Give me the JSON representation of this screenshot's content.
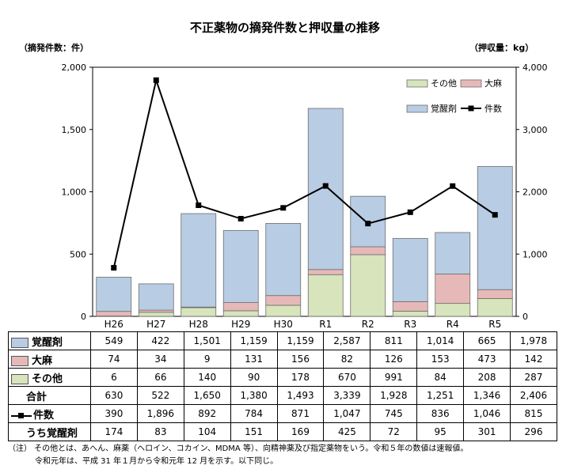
{
  "title": "不正薬物の摘発件数と押収量の推移",
  "unit_left": "（摘発件数：件）",
  "unit_right": "（押収量：kg）",
  "colors": {
    "stimulant": "#b8cce4",
    "cannabis": "#e6b9b8",
    "other": "#d7e4bc",
    "line": "#000000",
    "bar_edge": "#6d6d6d"
  },
  "chart_data": {
    "type": "bar",
    "categories": [
      "H26",
      "H27",
      "H28",
      "H29",
      "H30",
      "R1",
      "R2",
      "R3",
      "R4",
      "R5"
    ],
    "stack_order": [
      "other",
      "cannabis",
      "stimulant"
    ],
    "series": [
      {
        "key": "stimulant",
        "name": "覚醒剤",
        "axis": "right",
        "values": [
          549,
          422,
          1501,
          1159,
          1159,
          2587,
          811,
          1014,
          665,
          1978
        ]
      },
      {
        "key": "cannabis",
        "name": "大麻",
        "axis": "right",
        "values": [
          74,
          34,
          9,
          131,
          156,
          82,
          126,
          153,
          473,
          142
        ]
      },
      {
        "key": "other",
        "name": "その他",
        "axis": "right",
        "values": [
          6,
          66,
          140,
          90,
          178,
          670,
          991,
          84,
          208,
          287
        ]
      },
      {
        "key": "cases",
        "name": "件数",
        "axis": "left",
        "type": "line",
        "values": [
          390,
          1896,
          892,
          784,
          871,
          1047,
          745,
          836,
          1046,
          815
        ]
      }
    ],
    "y_left": {
      "min": 0,
      "max": 2000,
      "ticks": [
        "0",
        "500",
        "1,000",
        "1,500",
        "2,000"
      ],
      "tick_values": [
        0,
        500,
        1000,
        1500,
        2000
      ]
    },
    "y_right": {
      "min": 0,
      "max": 4000,
      "ticks": [
        "0",
        "1,000",
        "2,000",
        "3,000",
        "4,000"
      ],
      "tick_values": [
        0,
        1000,
        2000,
        3000,
        4000
      ]
    },
    "grid": false,
    "legend_placement": "top-right"
  },
  "table": {
    "rows": [
      {
        "label": "覚醒剤",
        "key": "stimulant",
        "cells": [
          "549",
          "422",
          "1,501",
          "1,159",
          "1,159",
          "2,587",
          "811",
          "1,014",
          "665",
          "1,978"
        ]
      },
      {
        "label": "大麻",
        "key": "cannabis",
        "cells": [
          "74",
          "34",
          "9",
          "131",
          "156",
          "82",
          "126",
          "153",
          "473",
          "142"
        ]
      },
      {
        "label": "その他",
        "key": "other",
        "cells": [
          "6",
          "66",
          "140",
          "90",
          "178",
          "670",
          "991",
          "84",
          "208",
          "287"
        ]
      },
      {
        "label": "合計",
        "key": "total",
        "cells": [
          "630",
          "522",
          "1,650",
          "1,380",
          "1,493",
          "3,339",
          "1,928",
          "1,251",
          "1,346",
          "2,406"
        ]
      },
      {
        "label": "件数",
        "key": "cases",
        "cells": [
          "390",
          "1,896",
          "892",
          "784",
          "871",
          "1,047",
          "745",
          "836",
          "1,046",
          "815"
        ]
      },
      {
        "label": "うち覚醒剤",
        "key": "cases_stimulant",
        "cells": [
          "174",
          "83",
          "104",
          "151",
          "169",
          "425",
          "72",
          "95",
          "301",
          "296"
        ]
      }
    ]
  },
  "notes": [
    "（注） その他とは、あへん、麻薬（ヘロイン、コカイン、MDMA 等）、向精神薬及び指定薬物をいう。令和５年の数値は速報値。",
    "令和元年は、平成 31 年１月から令和元年 12 月を示す。以下同じ。"
  ]
}
